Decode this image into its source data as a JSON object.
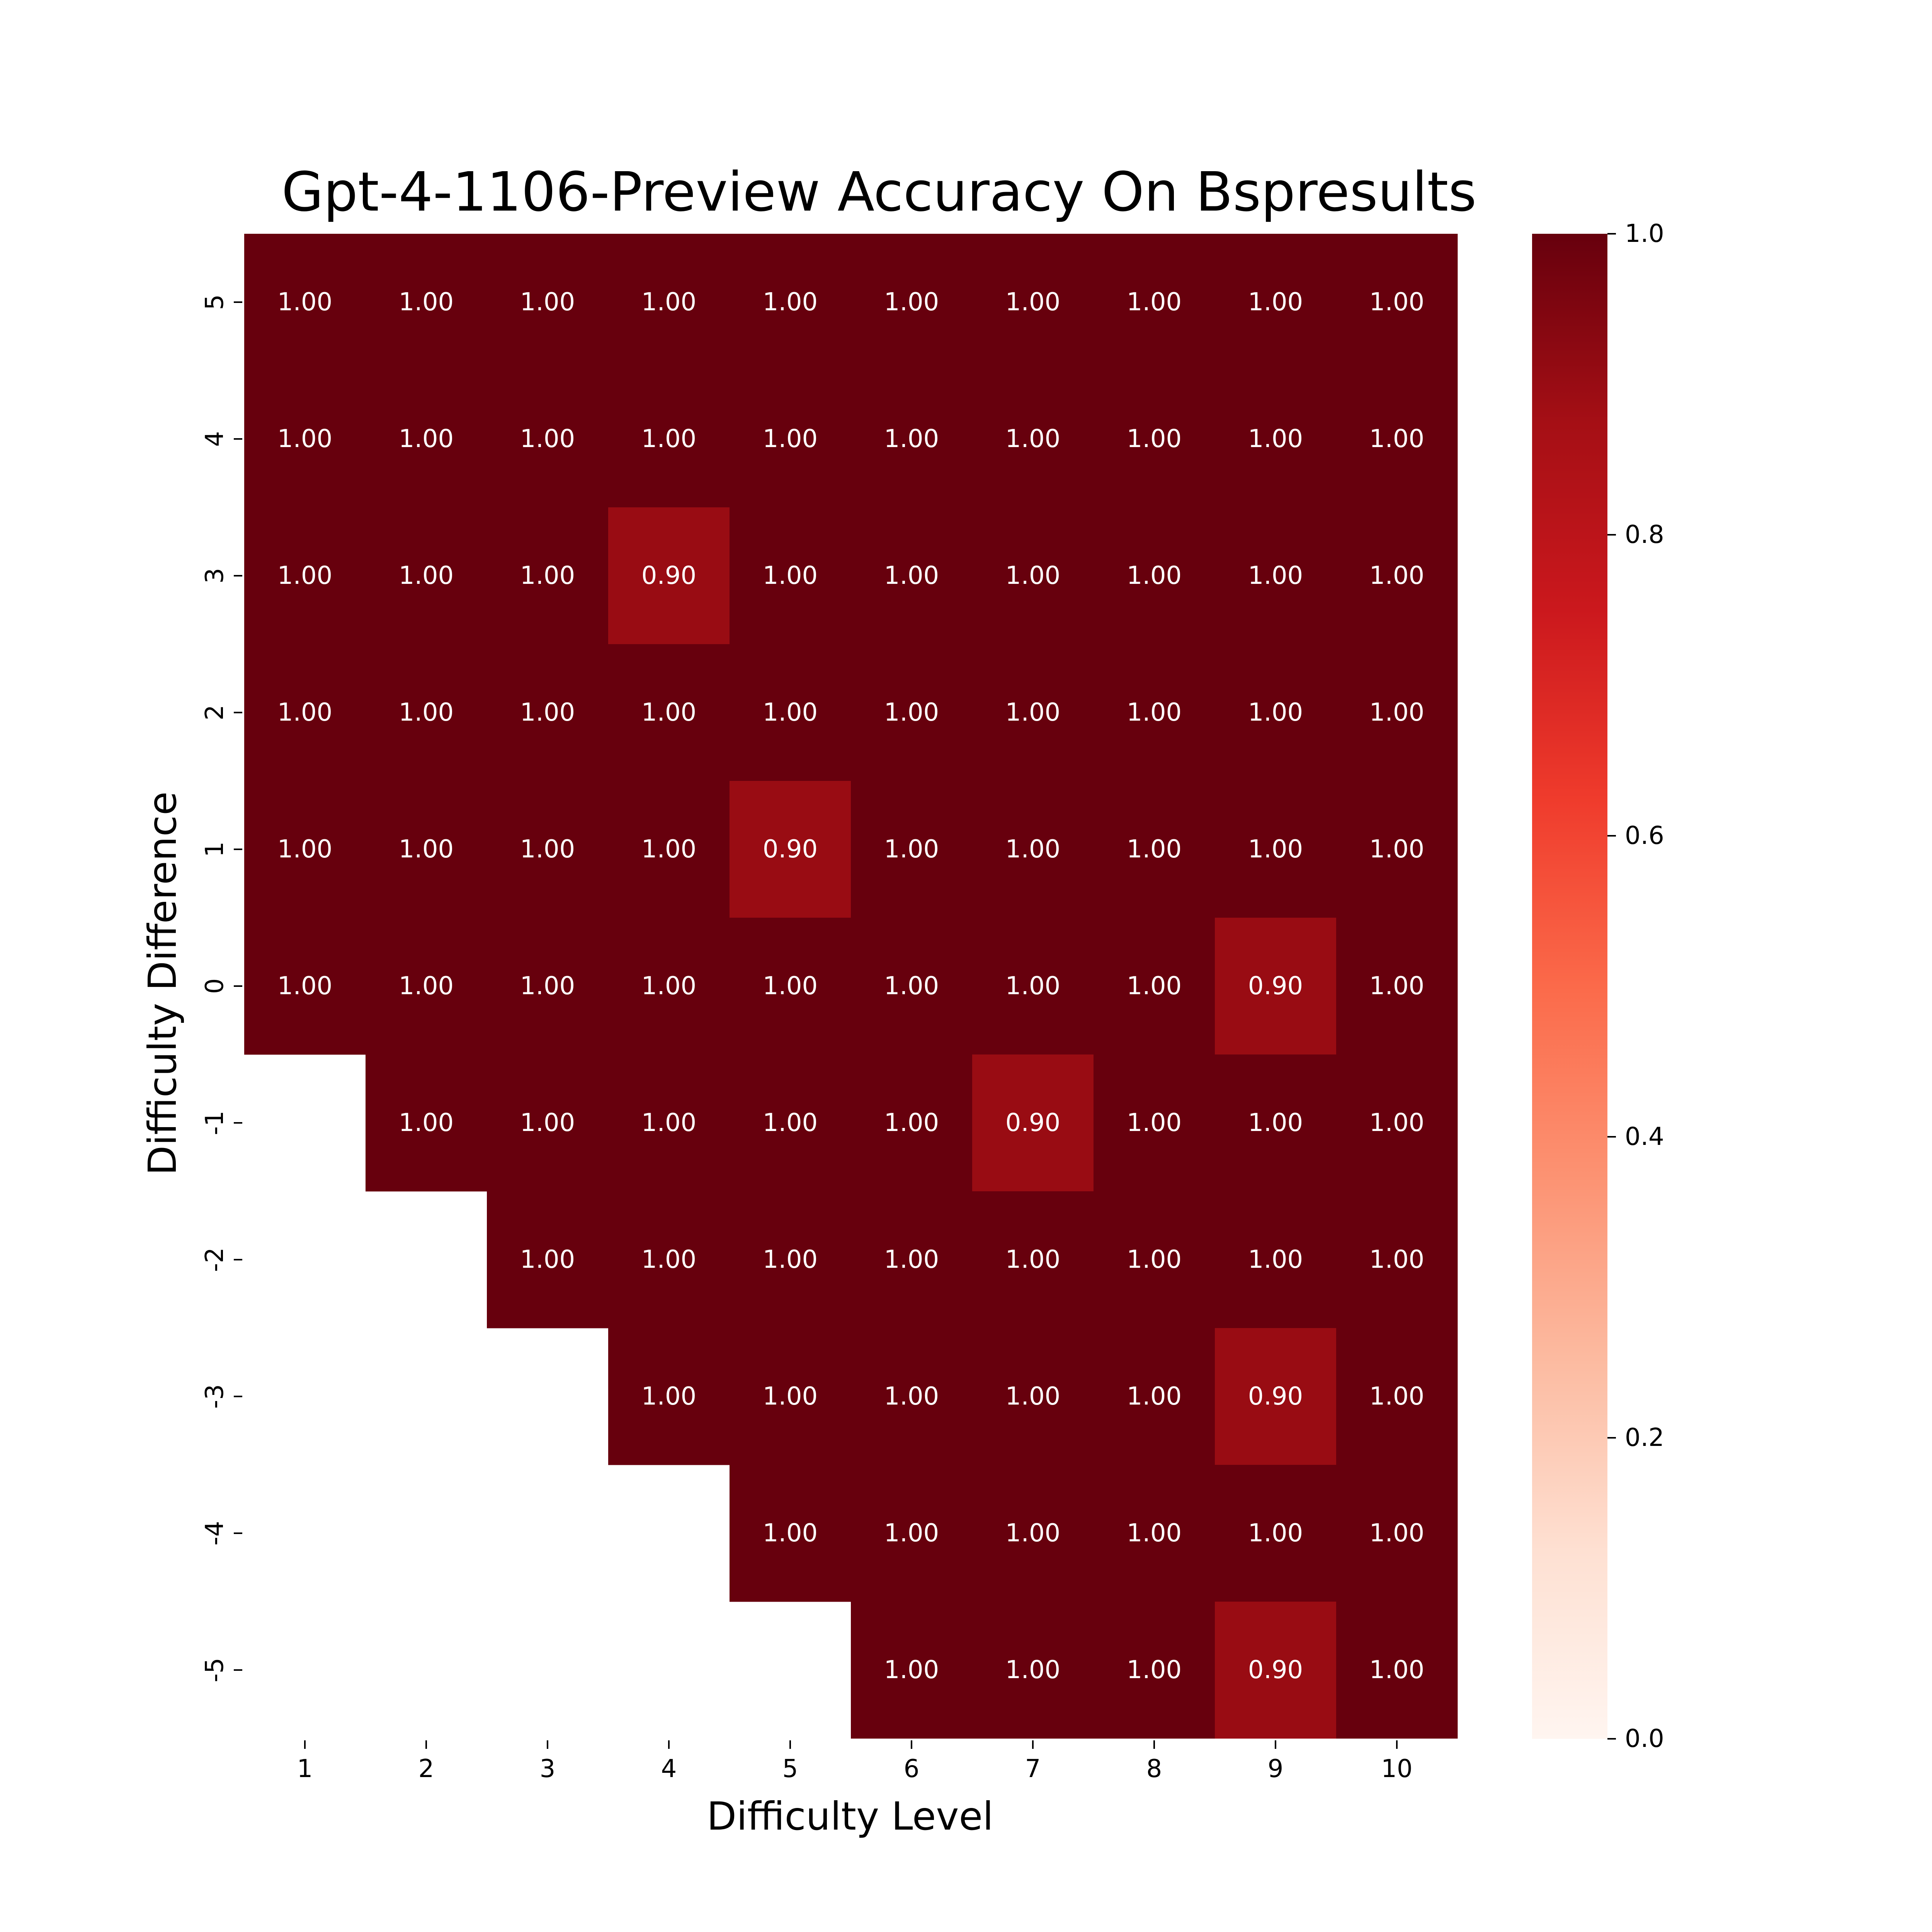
{
  "chart_data": {
    "type": "heatmap",
    "title": "Gpt-4-1106-Preview Accuracy On Bspresults",
    "xlabel": "Difficulty Level",
    "ylabel": "Difficulty Difference",
    "x_categories": [
      "1",
      "2",
      "3",
      "4",
      "5",
      "6",
      "7",
      "8",
      "9",
      "10"
    ],
    "y_categories": [
      "5",
      "4",
      "3",
      "2",
      "1",
      "0",
      "-1",
      "-2",
      "-3",
      "-4",
      "-5"
    ],
    "values": [
      [
        1.0,
        1.0,
        1.0,
        1.0,
        1.0,
        1.0,
        1.0,
        1.0,
        1.0,
        1.0
      ],
      [
        1.0,
        1.0,
        1.0,
        1.0,
        1.0,
        1.0,
        1.0,
        1.0,
        1.0,
        1.0
      ],
      [
        1.0,
        1.0,
        1.0,
        0.9,
        1.0,
        1.0,
        1.0,
        1.0,
        1.0,
        1.0
      ],
      [
        1.0,
        1.0,
        1.0,
        1.0,
        1.0,
        1.0,
        1.0,
        1.0,
        1.0,
        1.0
      ],
      [
        1.0,
        1.0,
        1.0,
        1.0,
        0.9,
        1.0,
        1.0,
        1.0,
        1.0,
        1.0
      ],
      [
        1.0,
        1.0,
        1.0,
        1.0,
        1.0,
        1.0,
        1.0,
        1.0,
        0.9,
        1.0
      ],
      [
        null,
        1.0,
        1.0,
        1.0,
        1.0,
        1.0,
        0.9,
        1.0,
        1.0,
        1.0
      ],
      [
        null,
        null,
        1.0,
        1.0,
        1.0,
        1.0,
        1.0,
        1.0,
        1.0,
        1.0
      ],
      [
        null,
        null,
        null,
        1.0,
        1.0,
        1.0,
        1.0,
        1.0,
        0.9,
        1.0
      ],
      [
        null,
        null,
        null,
        null,
        1.0,
        1.0,
        1.0,
        1.0,
        1.0,
        1.0
      ],
      [
        null,
        null,
        null,
        null,
        null,
        1.0,
        1.0,
        1.0,
        0.9,
        1.0
      ]
    ],
    "value_format": "0.00",
    "colormap": "Reds",
    "vmin": 0.0,
    "vmax": 1.0,
    "colors": {
      "cell_1_00": "#67000d",
      "cell_0_90": "#960e16",
      "annotation_text": "#ffffff"
    },
    "colorbar_ticks": [
      "0.0",
      "0.2",
      "0.4",
      "0.6",
      "0.8",
      "1.0"
    ],
    "colorbar_tick_values": [
      0.0,
      0.2,
      0.4,
      0.6,
      0.8,
      1.0
    ],
    "grid": false
  }
}
